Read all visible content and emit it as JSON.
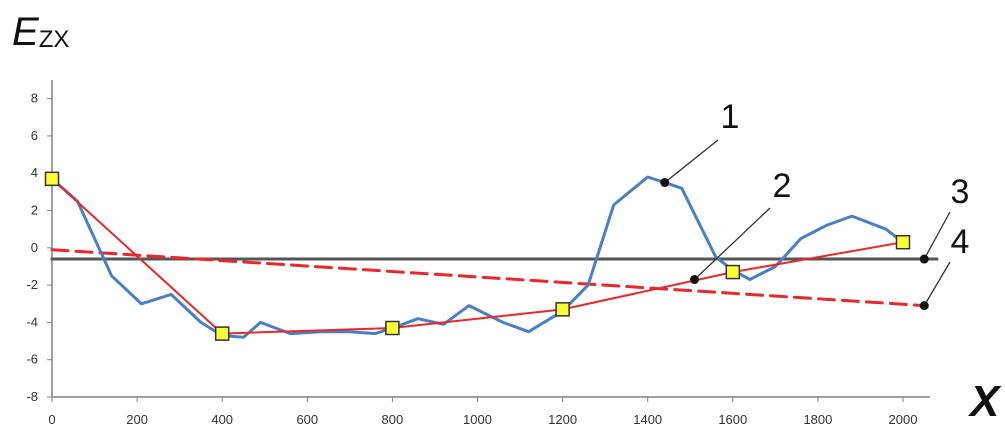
{
  "chart_data": {
    "type": "line",
    "title": "",
    "ylabel": {
      "main": "E",
      "sub": "ZX"
    },
    "xlabel": "X",
    "xlim": [
      0,
      2100
    ],
    "ylim": [
      -8,
      9
    ],
    "x_ticks": [
      0,
      200,
      400,
      600,
      800,
      1000,
      1200,
      1400,
      1600,
      1800,
      2000
    ],
    "y_ticks": [
      -8,
      -6,
      -4,
      -2,
      0,
      2,
      4,
      6,
      8
    ],
    "grid": false,
    "legend": "none",
    "series": [
      {
        "id": "series-1",
        "color": "#4a7fc4",
        "style": "solid",
        "points": [
          [
            0,
            3.7
          ],
          [
            60,
            2.5
          ],
          [
            140,
            -1.5
          ],
          [
            210,
            -3.0
          ],
          [
            280,
            -2.5
          ],
          [
            350,
            -4.0
          ],
          [
            400,
            -4.7
          ],
          [
            450,
            -4.8
          ],
          [
            490,
            -4.0
          ],
          [
            560,
            -4.6
          ],
          [
            630,
            -4.5
          ],
          [
            700,
            -4.5
          ],
          [
            760,
            -4.6
          ],
          [
            800,
            -4.3
          ],
          [
            860,
            -3.8
          ],
          [
            920,
            -4.1
          ],
          [
            980,
            -3.1
          ],
          [
            1060,
            -4.0
          ],
          [
            1120,
            -4.5
          ],
          [
            1200,
            -3.4
          ],
          [
            1260,
            -2.0
          ],
          [
            1320,
            2.3
          ],
          [
            1400,
            3.8
          ],
          [
            1440,
            3.5
          ],
          [
            1480,
            3.2
          ],
          [
            1560,
            -0.5
          ],
          [
            1600,
            -1.2
          ],
          [
            1640,
            -1.7
          ],
          [
            1700,
            -1.0
          ],
          [
            1760,
            0.5
          ],
          [
            1820,
            1.2
          ],
          [
            1880,
            1.7
          ],
          [
            1960,
            1.0
          ],
          [
            2000,
            0.3
          ]
        ]
      },
      {
        "id": "series-2",
        "color": "#e8282a",
        "style": "solid",
        "markers": true,
        "points": [
          [
            0,
            3.7
          ],
          [
            400,
            -4.6
          ],
          [
            800,
            -4.3
          ],
          [
            1200,
            -3.3
          ],
          [
            1600,
            -1.3
          ],
          [
            2000,
            0.3
          ]
        ]
      },
      {
        "id": "series-3",
        "color": "#555555",
        "style": "solid",
        "points": [
          [
            0,
            -0.6
          ],
          [
            2080,
            -0.6
          ]
        ]
      },
      {
        "id": "series-4",
        "color": "#e8282a",
        "style": "dashed",
        "points": [
          [
            0,
            -0.1
          ],
          [
            2050,
            -3.1
          ]
        ]
      }
    ],
    "annotations": [
      {
        "label": "1",
        "target": [
          1440,
          3.5
        ]
      },
      {
        "label": "2",
        "target": [
          1510,
          -1.7
        ]
      },
      {
        "label": "3",
        "target": [
          2050,
          -0.6
        ]
      },
      {
        "label": "4",
        "target": [
          2050,
          -3.1
        ]
      }
    ]
  }
}
